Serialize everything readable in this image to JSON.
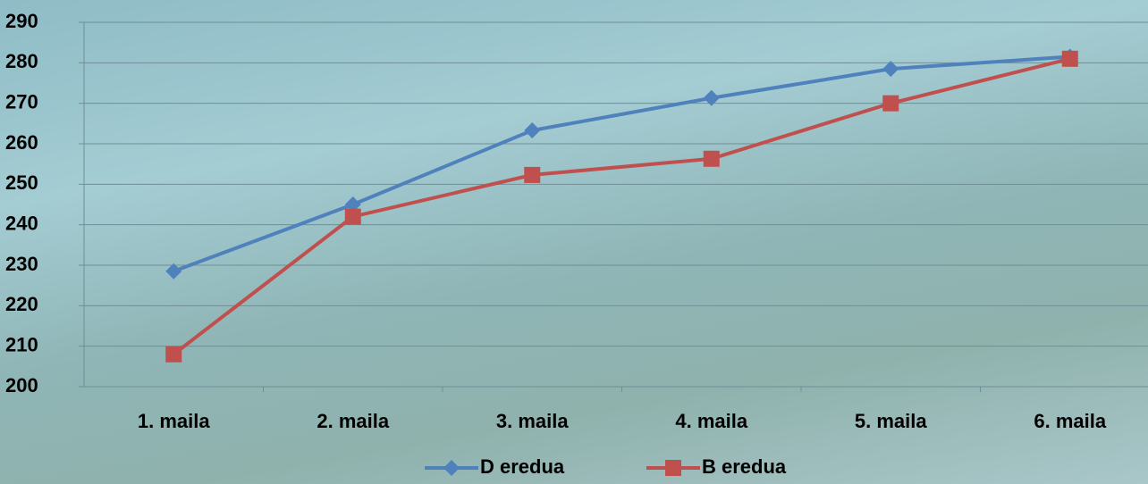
{
  "chart_data": {
    "type": "line",
    "categories": [
      "1. maila",
      "2. maila",
      "3. maila",
      "4. maila",
      "5. maila",
      "6. maila"
    ],
    "series": [
      {
        "name": "D eredua",
        "color": "#4f81bd",
        "marker": "diamond",
        "values": [
          228.5,
          245,
          263.3,
          271.3,
          278.5,
          281.5
        ]
      },
      {
        "name": "B eredua",
        "color": "#c0504d",
        "marker": "square",
        "values": [
          208,
          242,
          252.3,
          256.3,
          270,
          281
        ]
      }
    ],
    "ylim": [
      200,
      290
    ],
    "yticks": [
      200,
      210,
      220,
      230,
      240,
      250,
      260,
      270,
      280,
      290
    ],
    "grid": true,
    "legend": "bottom"
  }
}
